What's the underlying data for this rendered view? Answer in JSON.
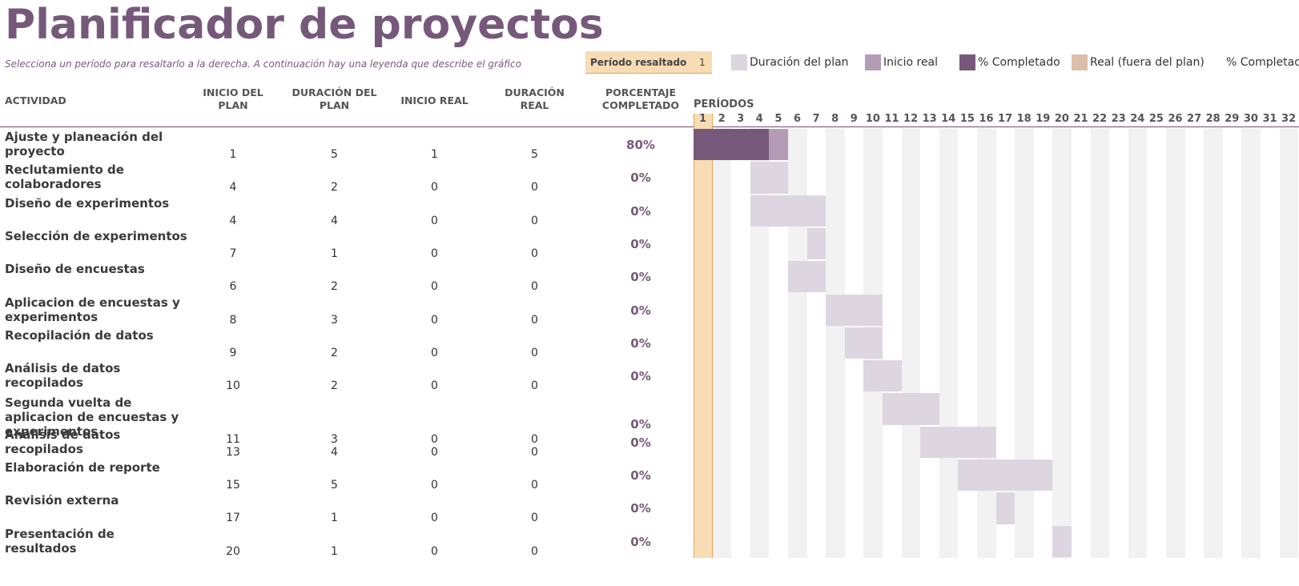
{
  "title": "Planificador de proyectos",
  "subtitle": "Selecciona un período para resaltarlo a la derecha.  A continuación hay una leyenda que describe el gráfico",
  "period_selector": {
    "label": "Período resaltado",
    "value": "1"
  },
  "legend": [
    {
      "label": "Duración del plan",
      "color": "#ddd5df"
    },
    {
      "label": "Inicio real",
      "color": "#b49cb7"
    },
    {
      "label": "% Completado",
      "color": "#76597a"
    },
    {
      "label": "Real (fuera del plan)",
      "color": "#dcbfa8"
    },
    {
      "label": "% Completado (fuera del plan)",
      "color": "#e8ac58"
    }
  ],
  "columns": {
    "activity": "ACTIVIDAD",
    "plan_start": "INICIO DEL PLAN",
    "plan_duration": "DURACIÓN DEL PLAN",
    "actual_start": "INICIO REAL",
    "actual_duration": "DURACIÓN REAL",
    "percent_complete": "PORCENTAJE COMPLETADO",
    "periods": "PERÍODOS"
  },
  "highlighted_period": 1,
  "period_count": 32,
  "periods": [
    "1",
    "2",
    "3",
    "4",
    "5",
    "6",
    "7",
    "8",
    "9",
    "10",
    "11",
    "12",
    "13",
    "14",
    "15",
    "16",
    "17",
    "18",
    "19",
    "20",
    "21",
    "22",
    "23",
    "24",
    "25",
    "26",
    "27",
    "28",
    "29",
    "30",
    "31",
    "32"
  ],
  "rows": [
    {
      "activity": "Ajuste y planeación del proyecto",
      "plan_start": "1",
      "plan_duration": "5",
      "actual_start": "1",
      "actual_duration": "5",
      "percent": "80%"
    },
    {
      "activity": "Reclutamiento de colaboradores",
      "plan_start": "4",
      "plan_duration": "2",
      "actual_start": "0",
      "actual_duration": "0",
      "percent": "0%"
    },
    {
      "activity": "Diseño de experimentos",
      "plan_start": "4",
      "plan_duration": "4",
      "actual_start": "0",
      "actual_duration": "0",
      "percent": "0%"
    },
    {
      "activity": "Selección de experimentos",
      "plan_start": "7",
      "plan_duration": "1",
      "actual_start": "0",
      "actual_duration": "0",
      "percent": "0%"
    },
    {
      "activity": "Diseño de encuestas",
      "plan_start": "6",
      "plan_duration": "2",
      "actual_start": "0",
      "actual_duration": "0",
      "percent": "0%"
    },
    {
      "activity": "Aplicacion de encuestas y experimentos",
      "plan_start": "8",
      "plan_duration": "3",
      "actual_start": "0",
      "actual_duration": "0",
      "percent": "0%"
    },
    {
      "activity": "Recopilación de datos",
      "plan_start": "9",
      "plan_duration": "2",
      "actual_start": "0",
      "actual_duration": "0",
      "percent": "0%"
    },
    {
      "activity": "Análisis de datos recopilados",
      "plan_start": "10",
      "plan_duration": "2",
      "actual_start": "0",
      "actual_duration": "0",
      "percent": "0%"
    },
    {
      "activity": "Segunda vuelta de aplicacion de encuestas y experimentos",
      "plan_start": "11",
      "plan_duration": "3",
      "actual_start": "0",
      "actual_duration": "0",
      "percent": "0%"
    },
    {
      "activity": "Análisis de datos recopilados",
      "plan_start": "13",
      "plan_duration": "4",
      "actual_start": "0",
      "actual_duration": "0",
      "percent": "0%"
    },
    {
      "activity": "Elaboración de reporte",
      "plan_start": "15",
      "plan_duration": "5",
      "actual_start": "0",
      "actual_duration": "0",
      "percent": "0%"
    },
    {
      "activity": "Revisión externa",
      "plan_start": "17",
      "plan_duration": "1",
      "actual_start": "0",
      "actual_duration": "0",
      "percent": "0%"
    },
    {
      "activity": "Presentación de resultados",
      "plan_start": "20",
      "plan_duration": "1",
      "actual_start": "0",
      "actual_duration": "0",
      "percent": "0%"
    }
  ]
}
